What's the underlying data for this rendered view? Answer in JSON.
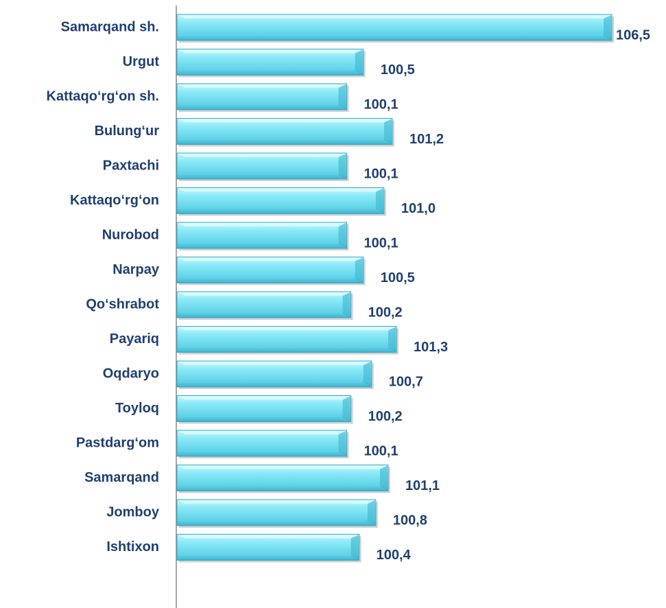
{
  "chart_data": {
    "type": "barh",
    "categories": [
      "Samarqand sh.",
      "Urgut",
      "Kattaqo‘rg‘on sh.",
      "Bulung‘ur",
      "Paxtachi",
      "Kattaqo‘rg‘on",
      "Nurobod",
      "Narpay",
      "Qo‘shrabot",
      "Payariq",
      "Oqdaryo",
      "Toyloq",
      "Pastdarg‘om",
      "Samarqand",
      "Jomboy",
      "Ishtixon"
    ],
    "values": [
      106.5,
      100.5,
      100.1,
      101.2,
      100.1,
      101.0,
      100.1,
      100.5,
      100.2,
      101.3,
      100.7,
      100.2,
      100.1,
      101.1,
      100.8,
      100.4
    ],
    "value_labels": [
      "106,5",
      "100,5",
      "100,1",
      "101,2",
      "100,1",
      "101,0",
      "100,1",
      "100,5",
      "100,2",
      "101,3",
      "100,7",
      "100,2",
      "100,1",
      "101,1",
      "100,8",
      "100,4"
    ],
    "color": "#6fdcef",
    "xlim": [
      96,
      106.5
    ]
  }
}
